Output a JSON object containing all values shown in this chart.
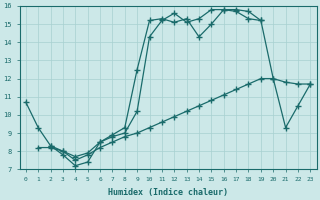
{
  "xlabel": "Humidex (Indice chaleur)",
  "xlim": [
    0,
    23
  ],
  "ylim": [
    7,
    16
  ],
  "xticks": [
    0,
    1,
    2,
    3,
    4,
    5,
    6,
    7,
    8,
    9,
    10,
    11,
    12,
    13,
    14,
    15,
    16,
    17,
    18,
    19,
    20,
    21,
    22,
    23
  ],
  "yticks": [
    7,
    8,
    9,
    10,
    11,
    12,
    13,
    14,
    15,
    16
  ],
  "bg_color": "#cce8e8",
  "line_color": "#1a6b6b",
  "grid_color": "#a8d0d0",
  "line1_x": [
    0,
    1,
    2,
    3,
    4,
    5,
    6,
    7,
    8,
    9,
    10,
    11,
    12,
    13,
    14,
    15,
    16,
    17,
    18,
    19,
    20,
    21,
    22,
    23
  ],
  "line1_y": [
    10.7,
    9.3,
    8.3,
    7.8,
    7.2,
    7.4,
    8.5,
    8.8,
    9.0,
    10.2,
    14.3,
    15.2,
    15.6,
    15.1,
    15.3,
    15.8,
    15.8,
    15.7,
    15.3,
    15.2,
    12.0,
    9.3,
    10.5,
    11.7
  ],
  "line2_x": [
    1,
    2,
    3,
    4,
    5,
    6,
    7,
    8,
    9,
    10,
    11,
    12,
    13,
    14,
    15,
    16,
    17,
    18,
    19,
    20,
    21,
    22,
    23
  ],
  "line2_y": [
    8.2,
    8.2,
    8.0,
    7.5,
    7.8,
    8.2,
    8.5,
    8.8,
    9.0,
    9.3,
    9.6,
    9.9,
    10.2,
    10.5,
    10.8,
    11.1,
    11.4,
    11.7,
    12.0,
    12.0,
    11.8,
    11.7,
    11.7
  ],
  "line3_x": [
    2,
    3,
    4,
    5,
    6,
    7,
    8,
    9,
    10,
    11,
    12,
    13,
    14,
    15,
    16,
    17,
    18,
    19
  ],
  "line3_y": [
    8.3,
    8.0,
    7.7,
    7.9,
    8.5,
    8.9,
    9.3,
    12.5,
    15.2,
    15.3,
    15.1,
    15.3,
    14.3,
    15.0,
    15.8,
    15.8,
    15.7,
    15.2
  ],
  "marker": "+",
  "marker_size": 4.0,
  "linewidth": 0.9
}
